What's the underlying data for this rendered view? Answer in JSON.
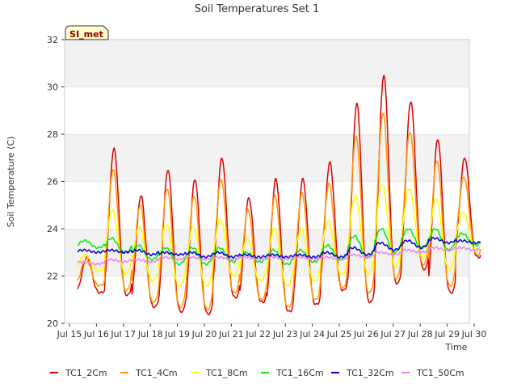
{
  "chart_data": {
    "type": "line",
    "title": "Soil Temperatures Set 1",
    "xlabel": "Time",
    "ylabel": "Soil Temperature (C)",
    "badge": "SI_met",
    "x_ticks": [
      "Jul 15",
      "Jul 16",
      "Jul 17",
      "Jul 18",
      "Jul 19",
      "Jul 20",
      "Jul 21",
      "Jul 22",
      "Jul 23",
      "Jul 24",
      "Jul 25",
      "Jul 26",
      "Jul 27",
      "Jul 28",
      "Jul 29",
      "Jul 30"
    ],
    "x_tick_values": [
      15,
      16,
      17,
      18,
      19,
      20,
      21,
      22,
      23,
      24,
      25,
      26,
      27,
      28,
      29,
      30
    ],
    "xlim": [
      15,
      30
    ],
    "y_ticks": [
      "20",
      "22",
      "24",
      "26",
      "28",
      "30",
      "32"
    ],
    "y_tick_values": [
      20,
      22,
      24,
      26,
      28,
      30,
      32
    ],
    "ylim": [
      20,
      32
    ],
    "grid": "horizontal bands",
    "legend_position": "bottom",
    "day_start": 15.3,
    "series": [
      {
        "name": "TC1_2Cm",
        "color": "#dd0000",
        "peaks": [
          22.8,
          27.4,
          25.4,
          26.5,
          26.1,
          27.0,
          25.3,
          26.1,
          26.1,
          26.8,
          29.3,
          30.5,
          29.4,
          27.8,
          27.0
        ],
        "mins": [
          21.3,
          21.2,
          20.7,
          20.5,
          20.4,
          21.1,
          20.9,
          20.5,
          20.8,
          21.4,
          20.9,
          21.7,
          22.3,
          21.3,
          22.8
        ]
      },
      {
        "name": "TC1_4Cm",
        "color": "#ff9900",
        "peaks": [
          22.7,
          26.5,
          25.0,
          25.7,
          25.4,
          26.1,
          24.8,
          25.4,
          25.5,
          25.9,
          27.9,
          28.9,
          28.1,
          26.9,
          26.2
        ],
        "mins": [
          21.6,
          21.4,
          20.9,
          20.7,
          20.6,
          21.3,
          21.0,
          20.7,
          21.0,
          21.5,
          21.3,
          21.9,
          22.5,
          21.6,
          22.9
        ]
      },
      {
        "name": "TC1_8Cm",
        "color": "#ffff00",
        "peaks": [
          22.9,
          24.8,
          24.1,
          24.2,
          24.1,
          24.4,
          23.6,
          24.0,
          24.0,
          24.3,
          25.4,
          25.9,
          25.7,
          25.3,
          24.7
        ],
        "mins": [
          22.2,
          22.1,
          21.8,
          21.6,
          21.6,
          22.0,
          21.8,
          21.6,
          21.8,
          22.1,
          22.1,
          22.4,
          22.8,
          22.3,
          23.1
        ]
      },
      {
        "name": "TC1_16Cm",
        "color": "#00ee00",
        "peaks": [
          23.5,
          23.6,
          23.3,
          23.2,
          23.2,
          23.2,
          23.0,
          23.1,
          23.1,
          23.3,
          23.7,
          24.0,
          24.0,
          24.0,
          23.8
        ],
        "mins": [
          23.2,
          23.0,
          22.7,
          22.5,
          22.5,
          22.6,
          22.6,
          22.5,
          22.6,
          22.7,
          22.8,
          23.0,
          23.2,
          23.1,
          23.3
        ]
      },
      {
        "name": "TC1_32Cm",
        "color": "#0000cc",
        "peaks": [
          23.1,
          23.1,
          23.1,
          23.0,
          23.0,
          23.0,
          22.9,
          22.9,
          22.9,
          23.0,
          23.2,
          23.4,
          23.5,
          23.6,
          23.5
        ],
        "mins": [
          23.0,
          23.0,
          22.9,
          22.9,
          22.8,
          22.8,
          22.8,
          22.8,
          22.8,
          22.8,
          22.9,
          23.1,
          23.2,
          23.4,
          23.4
        ]
      },
      {
        "name": "TC1_50Cm",
        "color": "#ee82ee",
        "peaks": [
          22.6,
          22.7,
          22.7,
          22.8,
          22.8,
          22.8,
          22.8,
          22.8,
          22.8,
          22.8,
          22.9,
          23.0,
          23.1,
          23.2,
          23.2
        ],
        "mins": [
          22.5,
          22.6,
          22.6,
          22.7,
          22.7,
          22.7,
          22.7,
          22.7,
          22.7,
          22.7,
          22.8,
          22.9,
          23.0,
          23.1,
          23.1
        ]
      }
    ]
  }
}
